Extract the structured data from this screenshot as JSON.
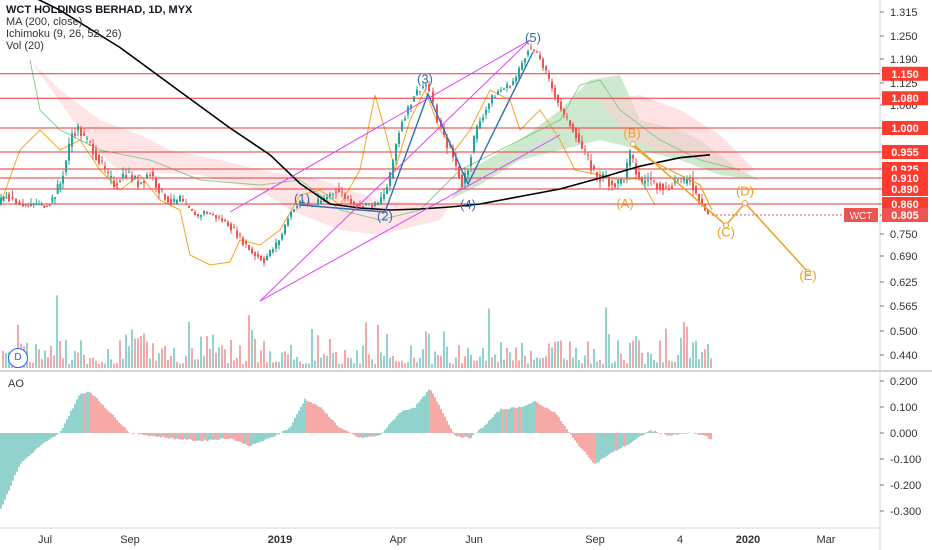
{
  "legend": {
    "title": "WCT HOLDINGS BERHAD, 1D, MYX",
    "ma": "MA (200, close)",
    "ichimoku": "Ichimoku (9, 26, 52, 26)",
    "vol": "Vol (20)"
  },
  "indicator_label": "AO",
  "badge": "D",
  "colors": {
    "up": "#26a69a",
    "down": "#ef5350",
    "ma": "#000000",
    "tenkan": "#f5a623",
    "cloud_green": "#a5d6a7",
    "cloud_red": "#ffcdd2",
    "channel": "#e040fb",
    "wave_blue": "#2f6eb5",
    "wave_orange": "#f0a020",
    "hline": "#e53935"
  },
  "chart_data": [
    {
      "type": "candlestick",
      "title": "WCT HOLDINGS BERHAD, 1D, MYX",
      "x_ticks": [
        "Jul",
        "Sep",
        "2019",
        "Apr",
        "Jun",
        "Sep",
        "4",
        "2020",
        "Mar"
      ],
      "y_ticks": [
        "1.315",
        "1.250",
        "1.190",
        "1.125",
        "1.060",
        "1.000",
        "0.955",
        "0.925",
        "0.910",
        "0.890",
        "0.860",
        "0.805",
        "0.750",
        "0.690",
        "0.625",
        "0.565",
        "0.500",
        "0.440"
      ],
      "price_labels": [
        "1.150",
        "1.080",
        "1.000",
        "0.955",
        "0.925",
        "0.910",
        "0.890",
        "0.860"
      ],
      "horizontal_levels": [
        1.15,
        1.08,
        1.0,
        0.955,
        0.925,
        0.91,
        0.89,
        0.86
      ],
      "last_price": {
        "symbol": "WCT",
        "value": "0.805"
      },
      "close_series": [
        [
          0,
          0.86
        ],
        [
          8,
          0.88
        ],
        [
          15,
          0.87
        ],
        [
          22,
          0.86
        ],
        [
          30,
          0.85
        ],
        [
          38,
          0.86
        ],
        [
          46,
          0.85
        ],
        [
          54,
          0.87
        ],
        [
          62,
          0.9
        ],
        [
          68,
          0.94
        ],
        [
          74,
          0.99
        ],
        [
          80,
          1.0
        ],
        [
          86,
          0.98
        ],
        [
          92,
          0.97
        ],
        [
          98,
          0.95
        ],
        [
          104,
          0.93
        ],
        [
          110,
          0.91
        ],
        [
          116,
          0.9
        ],
        [
          122,
          0.91
        ],
        [
          128,
          0.92
        ],
        [
          134,
          0.91
        ],
        [
          140,
          0.9
        ],
        [
          146,
          0.91
        ],
        [
          152,
          0.92
        ],
        [
          158,
          0.9
        ],
        [
          164,
          0.88
        ],
        [
          170,
          0.87
        ],
        [
          176,
          0.86
        ],
        [
          182,
          0.87
        ],
        [
          188,
          0.85
        ],
        [
          194,
          0.82
        ],
        [
          200,
          0.8
        ],
        [
          206,
          0.82
        ],
        [
          212,
          0.81
        ],
        [
          218,
          0.8
        ],
        [
          224,
          0.79
        ],
        [
          230,
          0.78
        ],
        [
          236,
          0.76
        ],
        [
          242,
          0.74
        ],
        [
          248,
          0.72
        ],
        [
          254,
          0.7
        ],
        [
          260,
          0.69
        ],
        [
          266,
          0.68
        ],
        [
          272,
          0.7
        ],
        [
          278,
          0.72
        ],
        [
          284,
          0.75
        ],
        [
          290,
          0.8
        ],
        [
          296,
          0.84
        ],
        [
          302,
          0.86
        ],
        [
          308,
          0.86
        ],
        [
          314,
          0.85
        ],
        [
          320,
          0.86
        ],
        [
          326,
          0.87
        ],
        [
          332,
          0.88
        ],
        [
          338,
          0.89
        ],
        [
          344,
          0.88
        ],
        [
          350,
          0.87
        ],
        [
          356,
          0.86
        ],
        [
          362,
          0.85
        ],
        [
          368,
          0.86
        ],
        [
          374,
          0.85
        ],
        [
          380,
          0.86
        ],
        [
          386,
          0.88
        ],
        [
          392,
          0.91
        ],
        [
          398,
          0.97
        ],
        [
          404,
          1.02
        ],
        [
          410,
          1.05
        ],
        [
          416,
          1.09
        ],
        [
          422,
          1.11
        ],
        [
          428,
          1.12
        ],
        [
          432,
          1.1
        ],
        [
          436,
          1.06
        ],
        [
          440,
          1.02
        ],
        [
          446,
          0.98
        ],
        [
          452,
          0.96
        ],
        [
          458,
          0.93
        ],
        [
          464,
          0.9
        ],
        [
          470,
          0.93
        ],
        [
          476,
          0.98
        ],
        [
          482,
          1.02
        ],
        [
          488,
          1.05
        ],
        [
          494,
          1.08
        ],
        [
          500,
          1.1
        ],
        [
          506,
          1.11
        ],
        [
          512,
          1.12
        ],
        [
          518,
          1.14
        ],
        [
          524,
          1.18
        ],
        [
          530,
          1.22
        ],
        [
          536,
          1.21
        ],
        [
          542,
          1.19
        ],
        [
          548,
          1.15
        ],
        [
          554,
          1.11
        ],
        [
          560,
          1.07
        ],
        [
          566,
          1.03
        ],
        [
          572,
          1.01
        ],
        [
          578,
          0.99
        ],
        [
          584,
          0.96
        ],
        [
          590,
          0.94
        ],
        [
          596,
          0.92
        ],
        [
          602,
          0.91
        ],
        [
          608,
          0.91
        ],
        [
          614,
          0.9
        ],
        [
          620,
          0.9
        ],
        [
          626,
          0.91
        ],
        [
          632,
          0.95
        ],
        [
          638,
          0.92
        ],
        [
          644,
          0.9
        ],
        [
          650,
          0.91
        ],
        [
          656,
          0.9
        ],
        [
          662,
          0.9
        ],
        [
          668,
          0.89
        ],
        [
          674,
          0.9
        ],
        [
          680,
          0.91
        ],
        [
          686,
          0.9
        ],
        [
          692,
          0.91
        ],
        [
          698,
          0.88
        ],
        [
          704,
          0.86
        ],
        [
          710,
          0.81
        ]
      ],
      "ma200": [
        [
          0,
          1.4
        ],
        [
          60,
          1.32
        ],
        [
          120,
          1.22
        ],
        [
          180,
          1.1
        ],
        [
          230,
          1.0
        ],
        [
          270,
          0.95
        ],
        [
          300,
          0.9
        ],
        [
          330,
          0.86
        ],
        [
          360,
          0.84
        ],
        [
          390,
          0.83
        ],
        [
          420,
          0.835
        ],
        [
          450,
          0.845
        ],
        [
          480,
          0.86
        ],
        [
          520,
          0.875
        ],
        [
          560,
          0.89
        ],
        [
          600,
          0.91
        ],
        [
          640,
          0.93
        ],
        [
          680,
          0.945
        ],
        [
          710,
          0.95
        ]
      ],
      "waves": [
        {
          "label": "(1)",
          "x": 302,
          "y": 0.87
        },
        {
          "label": "(2)",
          "x": 385,
          "y": 0.8
        },
        {
          "label": "(3)",
          "x": 425,
          "y": 1.135
        },
        {
          "label": "(4)",
          "x": 468,
          "y": 0.855
        },
        {
          "label": "(5)",
          "x": 533,
          "y": 1.245
        },
        {
          "label": "(A)",
          "x": 625,
          "y": 0.86
        },
        {
          "label": "(B)",
          "x": 632,
          "y": 0.99
        },
        {
          "label": "(C)",
          "x": 726,
          "y": 0.755
        },
        {
          "label": "(D)",
          "x": 745,
          "y": 0.885
        },
        {
          "label": "(E)",
          "x": 808,
          "y": 0.64
        }
      ],
      "projection": [
        [
          633,
          0.97
        ],
        [
          726,
          0.775
        ],
        [
          745,
          0.862
        ],
        [
          808,
          0.65
        ]
      ]
    },
    {
      "type": "bar",
      "title": "AO",
      "y_ticks": [
        "0.200",
        "0.100",
        "0.000",
        "-0.100",
        "-0.200",
        "-0.300"
      ],
      "ylim": [
        -0.33,
        0.2
      ]
    }
  ]
}
